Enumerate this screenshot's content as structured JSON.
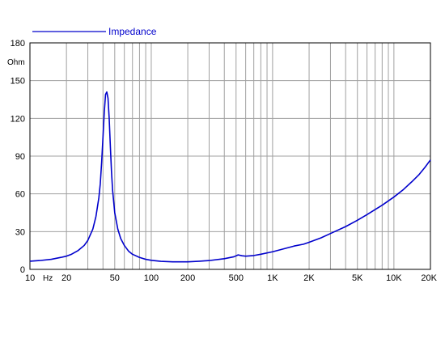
{
  "chart_data": {
    "type": "line",
    "x_scale": "log",
    "xlim": [
      10,
      20000
    ],
    "ylim": [
      0,
      180
    ],
    "grid": true,
    "legend_position": "top-left",
    "ylabel": "Ohm",
    "xlabel": "Hz",
    "y_ticks": [
      0,
      30,
      60,
      90,
      120,
      150,
      180
    ],
    "x_tick_labels": [
      {
        "value": 10,
        "label": "10"
      },
      {
        "value": 20,
        "label": "20"
      },
      {
        "value": 50,
        "label": "50"
      },
      {
        "value": 100,
        "label": "100"
      },
      {
        "value": 200,
        "label": "200"
      },
      {
        "value": 500,
        "label": "500"
      },
      {
        "value": 1000,
        "label": "1K"
      },
      {
        "value": 2000,
        "label": "2K"
      },
      {
        "value": 5000,
        "label": "5K"
      },
      {
        "value": 10000,
        "label": "10K"
      },
      {
        "value": 20000,
        "label": "20K"
      }
    ],
    "series": [
      {
        "name": "Impedance",
        "color": "#0000cc",
        "x": [
          10,
          12,
          15,
          18,
          20,
          22,
          25,
          28,
          30,
          33,
          35,
          37,
          38,
          39,
          40,
          41,
          42,
          43,
          44,
          45,
          46,
          47,
          48,
          50,
          53,
          56,
          60,
          65,
          70,
          80,
          90,
          100,
          120,
          150,
          200,
          250,
          300,
          400,
          480,
          520,
          560,
          600,
          700,
          800,
          1000,
          1200,
          1500,
          1800,
          2000,
          2500,
          3000,
          4000,
          5000,
          6000,
          7000,
          8000,
          10000,
          12000,
          14000,
          16000,
          18000,
          20000
        ],
        "y": [
          6.5,
          7.0,
          8.0,
          9.5,
          10.5,
          12.0,
          15.0,
          19.0,
          23.0,
          32.0,
          42.0,
          57.0,
          68.0,
          85.0,
          105.0,
          125.0,
          139.0,
          141.0,
          136.0,
          120.0,
          98.0,
          78.0,
          63.0,
          45.0,
          32.0,
          24.5,
          19.0,
          14.5,
          12.0,
          9.5,
          8.0,
          7.2,
          6.4,
          6.0,
          6.0,
          6.5,
          7.0,
          8.5,
          10.0,
          11.5,
          10.8,
          10.5,
          11.0,
          12.0,
          14.0,
          16.0,
          18.5,
          20.0,
          21.5,
          25.0,
          28.5,
          34.0,
          39.0,
          43.5,
          47.5,
          51.0,
          57.5,
          63.5,
          69.5,
          75.0,
          81.0,
          87.0
        ]
      }
    ]
  }
}
